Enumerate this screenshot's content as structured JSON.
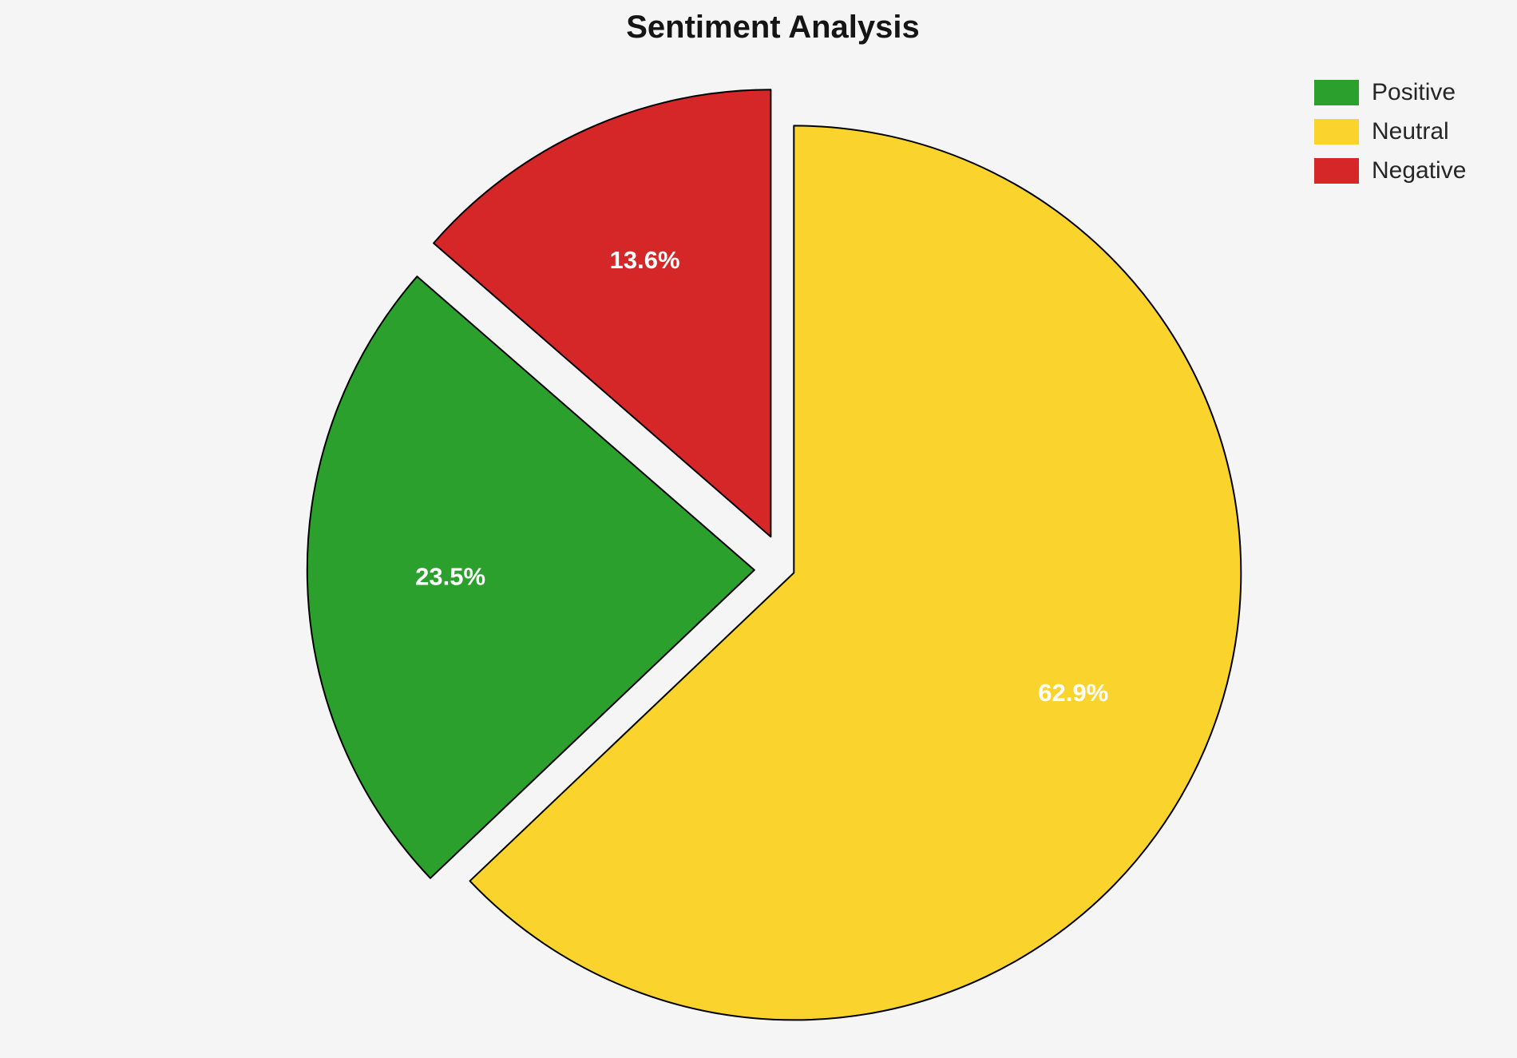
{
  "chart_data": {
    "type": "pie",
    "title": "Sentiment Analysis",
    "labels": [
      "Positive",
      "Neutral",
      "Negative"
    ],
    "values": [
      23.5,
      62.9,
      13.6
    ],
    "pct_labels": [
      "23.5%",
      "62.9%",
      "13.6%"
    ],
    "colors": [
      "#2ca02c",
      "#fad42d",
      "#d62728"
    ],
    "explode": [
      0.07,
      0.02,
      0.08
    ],
    "start_angle_deg": 90,
    "clockwise": true,
    "draw_order": [
      1,
      0,
      2
    ],
    "legend_position": "upper right",
    "label_color": "#ffffff",
    "edge_color": "#000000",
    "background": "#f5f5f5"
  }
}
